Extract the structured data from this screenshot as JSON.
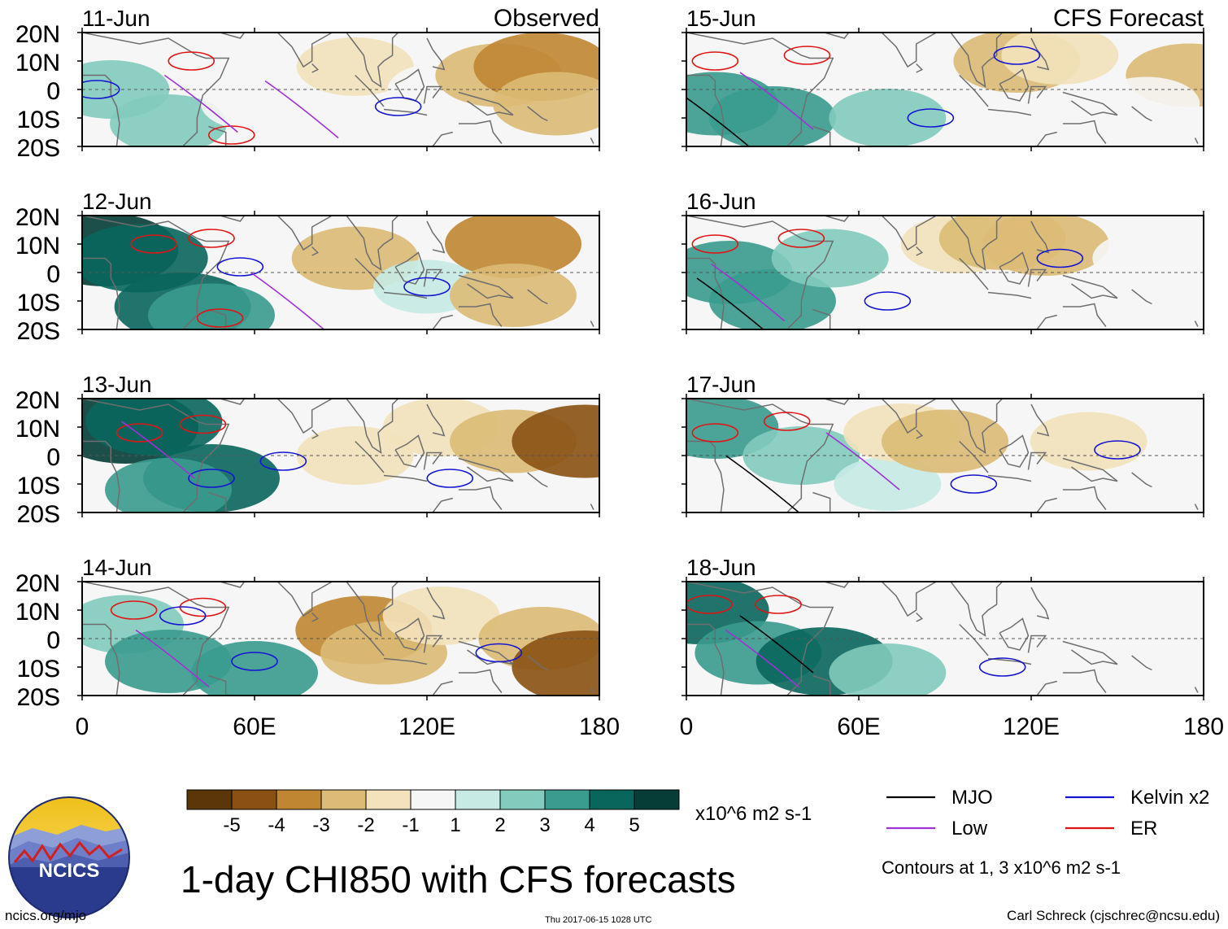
{
  "chart_data": {
    "type": "heatmap",
    "variable": "1-day CHI850 with CFS forecasts",
    "units": "x10^6 m2 s-1",
    "x_ticks": [
      "0",
      "60E",
      "120E",
      "180"
    ],
    "x_values": [
      0,
      60,
      120,
      180
    ],
    "y_ticks": [
      "20N",
      "10N",
      "0",
      "10S",
      "20S"
    ],
    "y_values": [
      20,
      10,
      0,
      -10,
      -20
    ],
    "xlim": [
      0,
      180
    ],
    "ylim": [
      -20,
      20
    ],
    "column_titles": {
      "left": "Observed",
      "right": "CFS Forecast"
    },
    "panels": [
      {
        "date": "11-Jun",
        "column": "left",
        "anomalies": [
          {
            "lon": 10,
            "lat": 0,
            "value": 2
          },
          {
            "lon": 30,
            "lat": -12,
            "value": 2
          },
          {
            "lon": 60,
            "lat": -5,
            "value": -1
          },
          {
            "lon": 95,
            "lat": 8,
            "value": -2
          },
          {
            "lon": 125,
            "lat": 0,
            "value": -1
          },
          {
            "lon": 145,
            "lat": 5,
            "value": -3
          },
          {
            "lon": 160,
            "lat": 8,
            "value": -4
          },
          {
            "lon": 165,
            "lat": -5,
            "value": -3
          }
        ],
        "contours": [
          {
            "type": "ER",
            "lon": 38,
            "lat": 10
          },
          {
            "type": "ER",
            "lon": 52,
            "lat": -16
          },
          {
            "type": "Kelvin x2",
            "lon": 5,
            "lat": 0
          },
          {
            "type": "Kelvin x2",
            "lon": 110,
            "lat": -6
          },
          {
            "type": "Low",
            "lon": 40,
            "lat": -3
          },
          {
            "type": "Low",
            "lon": 75,
            "lat": -5
          }
        ]
      },
      {
        "date": "12-Jun",
        "column": "left",
        "anomalies": [
          {
            "lon": 8,
            "lat": 8,
            "value": 5
          },
          {
            "lon": 20,
            "lat": 5,
            "value": 4
          },
          {
            "lon": 35,
            "lat": -12,
            "value": 4
          },
          {
            "lon": 45,
            "lat": -15,
            "value": 3
          },
          {
            "lon": 95,
            "lat": 5,
            "value": -3
          },
          {
            "lon": 120,
            "lat": -5,
            "value": 1
          },
          {
            "lon": 150,
            "lat": 10,
            "value": -4
          },
          {
            "lon": 150,
            "lat": -8,
            "value": -3
          }
        ],
        "contours": [
          {
            "type": "ER",
            "lon": 25,
            "lat": 10
          },
          {
            "type": "ER",
            "lon": 45,
            "lat": 12
          },
          {
            "type": "ER",
            "lon": 48,
            "lat": -16
          },
          {
            "type": "Kelvin x2",
            "lon": 55,
            "lat": 2
          },
          {
            "type": "Kelvin x2",
            "lon": 120,
            "lat": -5
          },
          {
            "type": "Low",
            "lon": 70,
            "lat": -8
          }
        ]
      },
      {
        "date": "13-Jun",
        "column": "left",
        "anomalies": [
          {
            "lon": 15,
            "lat": 10,
            "value": 5
          },
          {
            "lon": 25,
            "lat": 12,
            "value": 4
          },
          {
            "lon": 45,
            "lat": -8,
            "value": 4
          },
          {
            "lon": 30,
            "lat": -12,
            "value": 3
          },
          {
            "lon": 95,
            "lat": 0,
            "value": -2
          },
          {
            "lon": 125,
            "lat": 10,
            "value": -2
          },
          {
            "lon": 150,
            "lat": 5,
            "value": -3
          },
          {
            "lon": 175,
            "lat": 5,
            "value": -5
          }
        ],
        "contours": [
          {
            "type": "ER",
            "lon": 20,
            "lat": 8
          },
          {
            "type": "ER",
            "lon": 42,
            "lat": 11
          },
          {
            "type": "Kelvin x2",
            "lon": 45,
            "lat": -8
          },
          {
            "type": "Kelvin x2",
            "lon": 70,
            "lat": -2
          },
          {
            "type": "Kelvin x2",
            "lon": 128,
            "lat": -8
          },
          {
            "type": "Low",
            "lon": 25,
            "lat": 4
          }
        ]
      },
      {
        "date": "14-Jun",
        "column": "left",
        "anomalies": [
          {
            "lon": 15,
            "lat": 5,
            "value": 2
          },
          {
            "lon": 30,
            "lat": -8,
            "value": 3
          },
          {
            "lon": 60,
            "lat": -12,
            "value": 3
          },
          {
            "lon": 98,
            "lat": 3,
            "value": -4
          },
          {
            "lon": 105,
            "lat": -5,
            "value": -3
          },
          {
            "lon": 125,
            "lat": 8,
            "value": -2
          },
          {
            "lon": 160,
            "lat": 0,
            "value": -3
          },
          {
            "lon": 175,
            "lat": -10,
            "value": -5
          }
        ],
        "contours": [
          {
            "type": "ER",
            "lon": 18,
            "lat": 10
          },
          {
            "type": "ER",
            "lon": 42,
            "lat": 11
          },
          {
            "type": "Kelvin x2",
            "lon": 35,
            "lat": 8
          },
          {
            "type": "Kelvin x2",
            "lon": 60,
            "lat": -8
          },
          {
            "type": "Kelvin x2",
            "lon": 145,
            "lat": -5
          },
          {
            "type": "Low",
            "lon": 30,
            "lat": -5
          }
        ]
      },
      {
        "date": "15-Jun",
        "column": "right",
        "anomalies": [
          {
            "lon": 10,
            "lat": -5,
            "value": 3
          },
          {
            "lon": 30,
            "lat": -10,
            "value": 3
          },
          {
            "lon": 70,
            "lat": -10,
            "value": 2
          },
          {
            "lon": 115,
            "lat": 10,
            "value": -3
          },
          {
            "lon": 130,
            "lat": 12,
            "value": -2
          },
          {
            "lon": 175,
            "lat": 5,
            "value": -3
          },
          {
            "lon": 160,
            "lat": -5,
            "value": -1
          }
        ],
        "contours": [
          {
            "type": "ER",
            "lon": 10,
            "lat": 10
          },
          {
            "type": "ER",
            "lon": 42,
            "lat": 12
          },
          {
            "type": "Kelvin x2",
            "lon": 115,
            "lat": 12
          },
          {
            "type": "Kelvin x2",
            "lon": 85,
            "lat": -10
          },
          {
            "type": "MJO",
            "lon": 10,
            "lat": -10
          },
          {
            "type": "Low",
            "lon": 30,
            "lat": -2
          }
        ]
      },
      {
        "date": "16-Jun",
        "column": "right",
        "anomalies": [
          {
            "lon": 15,
            "lat": 0,
            "value": 3
          },
          {
            "lon": 30,
            "lat": -10,
            "value": 3
          },
          {
            "lon": 50,
            "lat": 5,
            "value": 2
          },
          {
            "lon": 95,
            "lat": 10,
            "value": -2
          },
          {
            "lon": 110,
            "lat": 12,
            "value": -3
          },
          {
            "lon": 125,
            "lat": 10,
            "value": -3
          },
          {
            "lon": 160,
            "lat": 5,
            "value": -1
          }
        ],
        "contours": [
          {
            "type": "ER",
            "lon": 10,
            "lat": 10
          },
          {
            "type": "ER",
            "lon": 40,
            "lat": 12
          },
          {
            "type": "Kelvin x2",
            "lon": 130,
            "lat": 5
          },
          {
            "type": "Kelvin x2",
            "lon": 70,
            "lat": -10
          },
          {
            "type": "MJO",
            "lon": 15,
            "lat": -10
          },
          {
            "type": "Low",
            "lon": 20,
            "lat": -5
          }
        ]
      },
      {
        "date": "17-Jun",
        "column": "right",
        "anomalies": [
          {
            "lon": 10,
            "lat": 10,
            "value": 3
          },
          {
            "lon": 40,
            "lat": 0,
            "value": 2
          },
          {
            "lon": 70,
            "lat": -10,
            "value": 1
          },
          {
            "lon": 75,
            "lat": 8,
            "value": -2
          },
          {
            "lon": 90,
            "lat": 5,
            "value": -3
          },
          {
            "lon": 140,
            "lat": 5,
            "value": -2
          }
        ],
        "contours": [
          {
            "type": "ER",
            "lon": 10,
            "lat": 8
          },
          {
            "type": "ER",
            "lon": 35,
            "lat": 12
          },
          {
            "type": "Kelvin x2",
            "lon": 150,
            "lat": 2
          },
          {
            "type": "Kelvin x2",
            "lon": 100,
            "lat": -10
          },
          {
            "type": "MJO",
            "lon": 25,
            "lat": -8
          },
          {
            "type": "Low",
            "lon": 60,
            "lat": 0
          }
        ]
      },
      {
        "date": "18-Jun",
        "column": "right",
        "anomalies": [
          {
            "lon": 5,
            "lat": 10,
            "value": 4
          },
          {
            "lon": 25,
            "lat": -5,
            "value": 3
          },
          {
            "lon": 48,
            "lat": -8,
            "value": 4
          },
          {
            "lon": 70,
            "lat": -12,
            "value": 2
          },
          {
            "lon": 60,
            "lat": 15,
            "value": -1
          },
          {
            "lon": 90,
            "lat": 12,
            "value": -1
          },
          {
            "lon": 160,
            "lat": 10,
            "value": -1
          }
        ],
        "contours": [
          {
            "type": "ER",
            "lon": 8,
            "lat": 12
          },
          {
            "type": "ER",
            "lon": 32,
            "lat": 12
          },
          {
            "type": "Kelvin x2",
            "lon": 110,
            "lat": -10
          },
          {
            "type": "MJO",
            "lon": 30,
            "lat": 0
          },
          {
            "type": "Low",
            "lon": 25,
            "lat": -5
          }
        ]
      }
    ],
    "colorbar": {
      "labels": [
        "-5",
        "-4",
        "-3",
        "-2",
        "-1",
        "1",
        "2",
        "3",
        "4",
        "5"
      ],
      "boundaries": [
        -5,
        -4,
        -3,
        -2,
        -1,
        1,
        2,
        3,
        4,
        5
      ],
      "colors": [
        "#5a3608",
        "#8a5113",
        "#c08632",
        "#dcbb76",
        "#f3e2bb",
        "#f6f6f6",
        "#c7ebe4",
        "#82cbbd",
        "#3a9b8f",
        "#09665d",
        "#063d37"
      ],
      "units": "x10^6 m2 s-1"
    },
    "legend": {
      "items": [
        {
          "label": "MJO",
          "color": "#000000"
        },
        {
          "label": "Kelvin x2",
          "color": "#1414d2"
        },
        {
          "label": "Low",
          "color": "#a030d8"
        },
        {
          "label": "ER",
          "color": "#e01414"
        }
      ],
      "note": "Contours at 1, 3 x10^6 m2 s-1"
    },
    "title": "1-day CHI850 with CFS forecasts"
  },
  "footer": {
    "url": "ncics.org/mjo",
    "timestamp": "Thu 2017-06-15 1028 UTC",
    "credit": "Carl Schreck (cjschrec@ncsu.edu)",
    "logo_text": "NCICS"
  },
  "colors": {
    "land": "#6e6e6e",
    "equator": "#555555",
    "ER": "#e01414",
    "Kelvin": "#1414d2",
    "Low": "#a030d8",
    "MJO": "#000000"
  }
}
